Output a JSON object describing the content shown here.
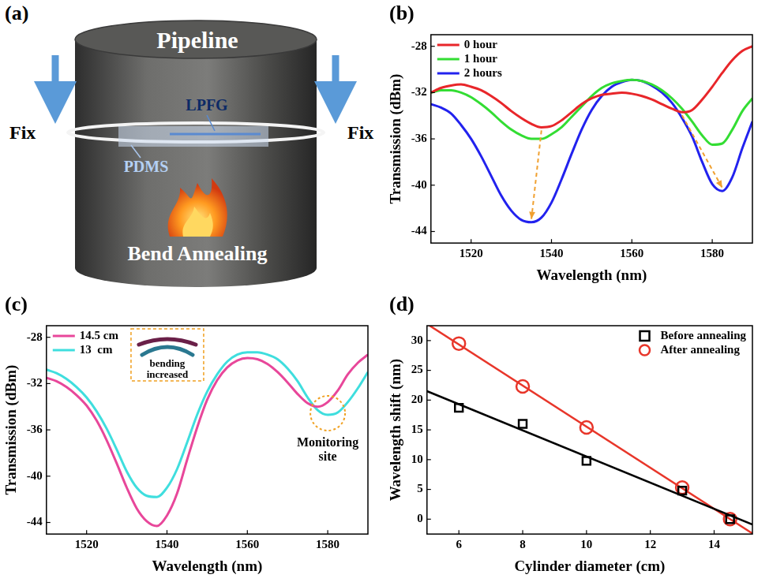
{
  "diagram": {
    "panel_label": "(a)",
    "title": "Pipeline",
    "fix_label": "Fix",
    "fiber_label": "LPFG",
    "coating_label": "PDMS",
    "heat_label": "Bend Annealing"
  },
  "chart_data": [
    {
      "panel_label": "(b)",
      "type": "line",
      "x_label": "Wavelength (nm)",
      "y_label": "Transmission (dBm)",
      "x": [
        1510,
        1512.5,
        1515,
        1517.5,
        1520,
        1522.5,
        1525,
        1527.5,
        1530,
        1532.5,
        1535,
        1537.5,
        1540,
        1542.5,
        1545,
        1547.5,
        1550,
        1552.5,
        1555,
        1557.5,
        1560,
        1562.5,
        1565,
        1567.5,
        1570,
        1572.5,
        1575,
        1577.5,
        1580,
        1582.5,
        1585,
        1587.5,
        1590
      ],
      "series": [
        {
          "name": "0 hour",
          "color": "#e8262a",
          "values": [
            -32,
            -31.6,
            -31.4,
            -31.3,
            -31.5,
            -31.8,
            -32.3,
            -32.9,
            -33.6,
            -34.2,
            -34.7,
            -35,
            -34.9,
            -34.4,
            -33.7,
            -33,
            -32.5,
            -32.2,
            -32.1,
            -32,
            -32.1,
            -32.3,
            -32.6,
            -33,
            -33.4,
            -33.7,
            -33.5,
            -32.6,
            -31.5,
            -30.3,
            -29.2,
            -28.4,
            -28
          ]
        },
        {
          "name": "1 hour",
          "color": "#33dd33",
          "values": [
            -32,
            -31.8,
            -31.8,
            -32,
            -32.4,
            -33,
            -33.7,
            -34.5,
            -35.2,
            -35.7,
            -36,
            -36,
            -35.6,
            -35,
            -34.1,
            -33.2,
            -32.3,
            -31.6,
            -31.2,
            -31,
            -30.9,
            -31,
            -31.3,
            -31.8,
            -32.5,
            -33.4,
            -34.5,
            -35.7,
            -36.5,
            -36.4,
            -35.2,
            -33.6,
            -32.5
          ]
        },
        {
          "name": "2 hours",
          "color": "#2222ee",
          "values": [
            -33,
            -33.3,
            -33.8,
            -34.8,
            -36,
            -37.5,
            -39.2,
            -40.9,
            -42.2,
            -43,
            -43.2,
            -42.8,
            -41.5,
            -39.5,
            -37.3,
            -35.2,
            -33.5,
            -32.3,
            -31.5,
            -31.1,
            -30.9,
            -31,
            -31.4,
            -32,
            -32.9,
            -34.2,
            -35.8,
            -38,
            -39.9,
            -40.5,
            -39.3,
            -36.8,
            -34.5
          ]
        }
      ],
      "xlim": [
        1510,
        1590
      ],
      "xticks": [
        1520,
        1540,
        1560,
        1580
      ],
      "ylim": [
        -45,
        -27
      ],
      "yticks": [
        -44,
        -40,
        -36,
        -32,
        -28
      ],
      "grid": false,
      "legend": "upper left"
    },
    {
      "panel_label": "(c)",
      "type": "line",
      "x_label": "Wavelength (nm)",
      "y_label": "Transmission (dBm)",
      "x": [
        1510,
        1512.5,
        1515,
        1517.5,
        1520,
        1522.5,
        1525,
        1527.5,
        1530,
        1532.5,
        1535,
        1537.5,
        1540,
        1542.5,
        1545,
        1547.5,
        1550,
        1552.5,
        1555,
        1557.5,
        1560,
        1562.5,
        1565,
        1567.5,
        1570,
        1572.5,
        1575,
        1577.5,
        1580,
        1582.5,
        1585,
        1587.5,
        1590
      ],
      "series": [
        {
          "name": "14.5 cm",
          "color": "#e8479a",
          "values": [
            -31.5,
            -31.8,
            -32.3,
            -33,
            -33.9,
            -35.2,
            -36.9,
            -38.9,
            -41,
            -42.8,
            -43.9,
            -44.3,
            -43.4,
            -41.5,
            -38.6,
            -35.8,
            -33.4,
            -31.7,
            -30.6,
            -30,
            -29.8,
            -29.9,
            -30.3,
            -31,
            -31.9,
            -32.9,
            -33.7,
            -34,
            -33.6,
            -32.6,
            -31.2,
            -30.2,
            -29.5
          ]
        },
        {
          "name": "13  cm",
          "color": "#3fdede",
          "values": [
            -30.8,
            -31.1,
            -31.6,
            -32.3,
            -33.2,
            -34.4,
            -35.9,
            -37.7,
            -39.6,
            -41,
            -41.7,
            -41.8,
            -41,
            -39.4,
            -37.1,
            -34.7,
            -32.7,
            -31.2,
            -30.1,
            -29.5,
            -29.3,
            -29.3,
            -29.5,
            -29.9,
            -30.7,
            -31.8,
            -33.2,
            -34.3,
            -34.7,
            -34.5,
            -33.6,
            -32.4,
            -31
          ]
        }
      ],
      "annotations": [
        "bending increased",
        "Monitoring site"
      ],
      "xlim": [
        1510,
        1590
      ],
      "xticks": [
        1520,
        1540,
        1560,
        1580
      ],
      "ylim": [
        -45,
        -27
      ],
      "yticks": [
        -44,
        -40,
        -36,
        -32,
        -28
      ],
      "grid": false,
      "legend": "upper left"
    },
    {
      "panel_label": "(d)",
      "type": "scatter",
      "x_label": "Cylinder diameter (cm)",
      "y_label": "Wavelength shift (nm)",
      "x": [
        6,
        8,
        10,
        13,
        14.5
      ],
      "series": [
        {
          "name": "Before annealing",
          "color": "#000000",
          "marker": "square",
          "line_style": "solid",
          "values": [
            18.7,
            16,
            9.8,
            4.8,
            0
          ]
        },
        {
          "name": "After annealing",
          "color": "#e8362a",
          "marker": "circle",
          "line_style": "solid",
          "values": [
            29.5,
            22.3,
            15.4,
            5.3,
            0
          ]
        }
      ],
      "xlim": [
        5,
        15.2
      ],
      "xticks": [
        6,
        8,
        10,
        12,
        14
      ],
      "ylim": [
        -2.5,
        32.5
      ],
      "yticks": [
        0,
        5,
        10,
        15,
        20,
        25,
        30
      ],
      "grid": false,
      "legend": "upper right"
    }
  ]
}
